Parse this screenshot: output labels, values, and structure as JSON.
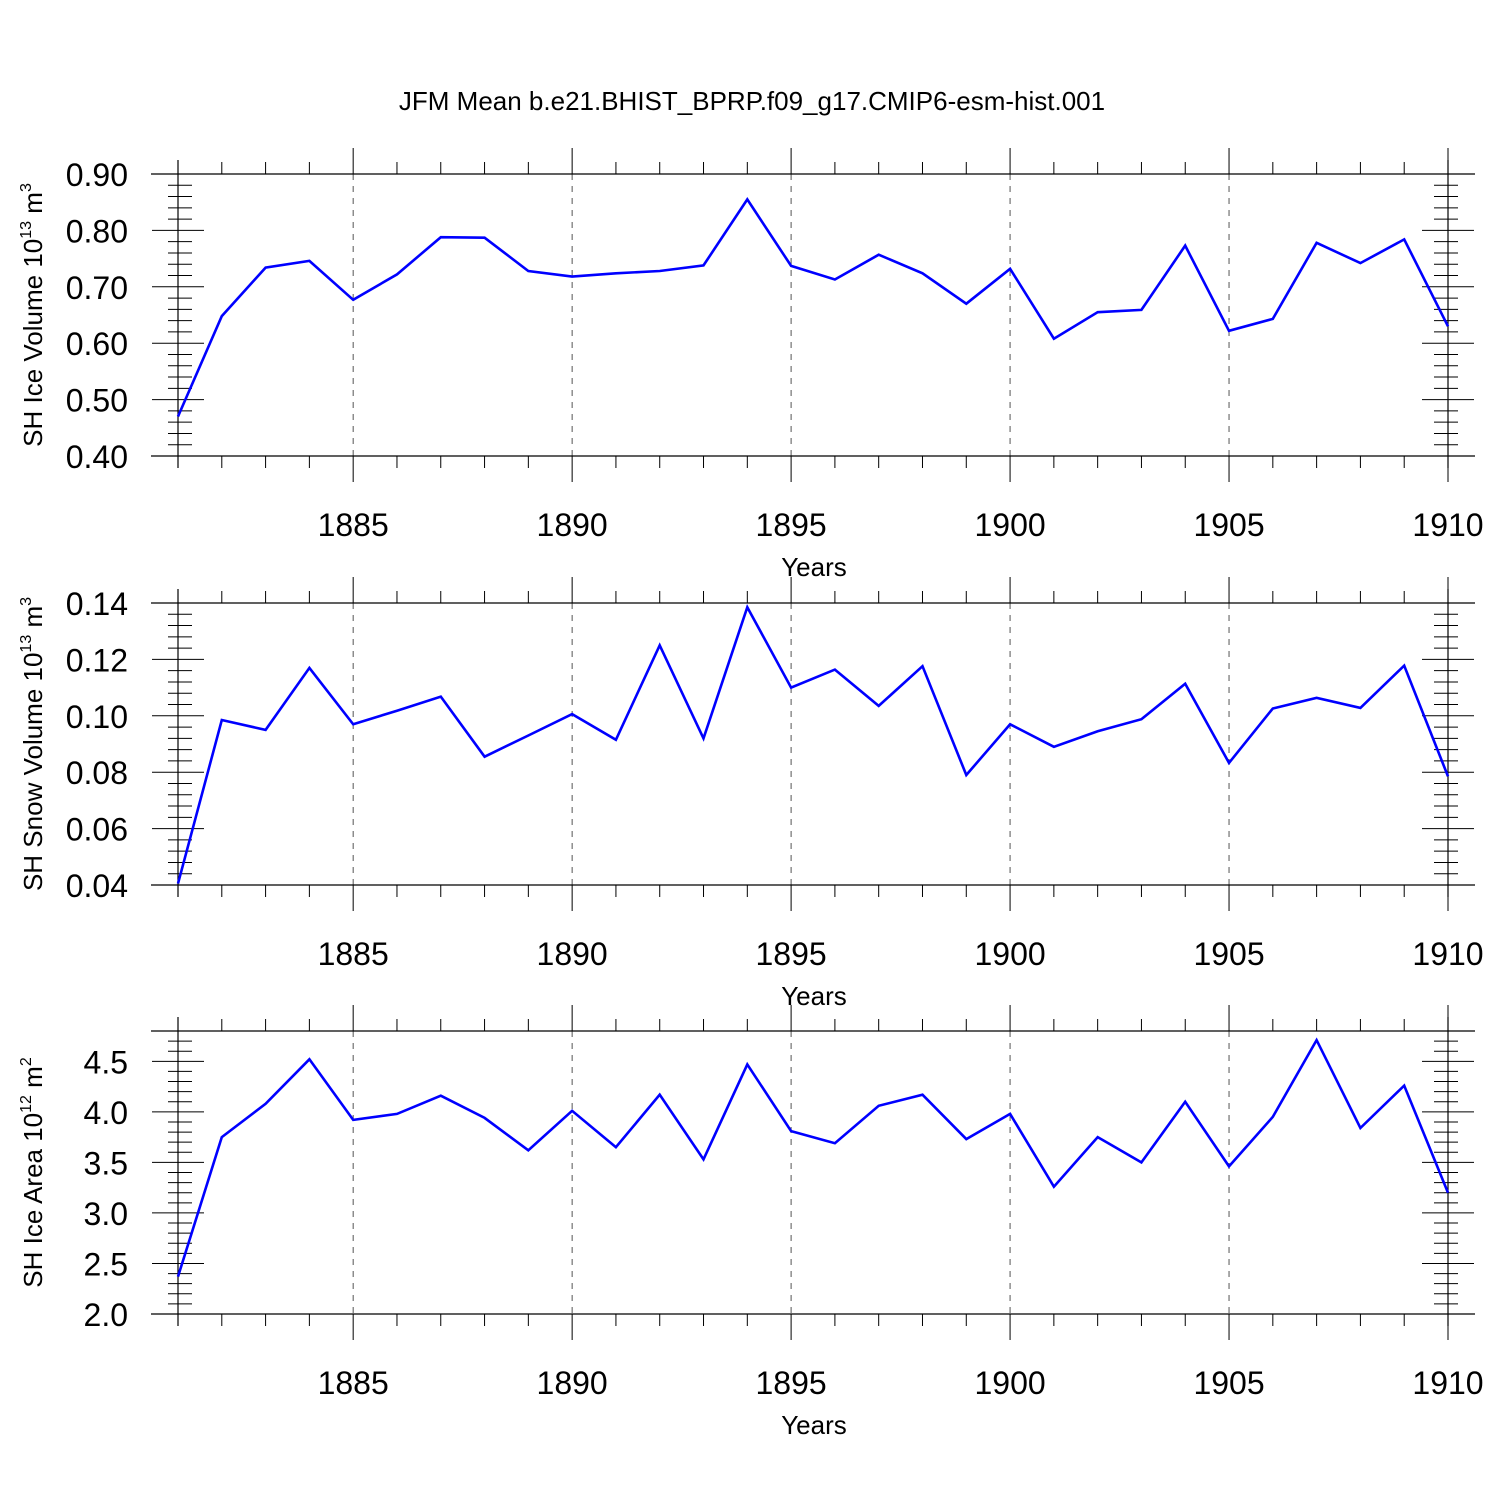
{
  "title": "JFM Mean b.e21.BHIST_BPRP.f09_g17.CMIP6-esm-hist.001",
  "colors": {
    "line": "#0000ff",
    "axis": "#000000",
    "grid": "#555555"
  },
  "chart_data": [
    {
      "type": "line",
      "xlabel": "Years",
      "ylabel": {
        "base": "SH Ice Volume 10",
        "exp": "13",
        "unit": " m",
        "unit_exp": "3"
      },
      "xlim": [
        1881,
        1910
      ],
      "ylim": [
        0.4,
        0.9
      ],
      "x_ticks": [
        1885,
        1890,
        1895,
        1900,
        1905,
        1910
      ],
      "x_tick_labels": [
        "1885",
        "1890",
        "1895",
        "1900",
        "1905",
        "1910"
      ],
      "y_ticks": [
        0.4,
        0.5,
        0.6,
        0.7,
        0.8,
        0.9
      ],
      "y_tick_labels": [
        "0.40",
        "0.50",
        "0.60",
        "0.70",
        "0.80",
        "0.90"
      ],
      "y_minor_step": 0.02,
      "grid": "vertical-dashed-at-major-x",
      "series": [
        {
          "name": "SH Ice Volume",
          "x": [
            1881,
            1882,
            1883,
            1884,
            1885,
            1886,
            1887,
            1888,
            1889,
            1890,
            1891,
            1892,
            1893,
            1894,
            1895,
            1896,
            1897,
            1898,
            1899,
            1900,
            1901,
            1902,
            1903,
            1904,
            1905,
            1906,
            1907,
            1908,
            1909,
            1910
          ],
          "values": [
            0.47,
            0.648,
            0.734,
            0.746,
            0.677,
            0.722,
            0.788,
            0.787,
            0.728,
            0.718,
            0.724,
            0.728,
            0.738,
            0.855,
            0.737,
            0.713,
            0.757,
            0.724,
            0.67,
            0.732,
            0.608,
            0.655,
            0.659,
            0.773,
            0.622,
            0.643,
            0.778,
            0.742,
            0.784,
            0.63
          ]
        }
      ]
    },
    {
      "type": "line",
      "xlabel": "Years",
      "ylabel": {
        "base": "SH Snow Volume 10",
        "exp": "13",
        "unit": " m",
        "unit_exp": "3"
      },
      "xlim": [
        1881,
        1910
      ],
      "ylim": [
        0.04,
        0.14
      ],
      "x_ticks": [
        1885,
        1890,
        1895,
        1900,
        1905,
        1910
      ],
      "x_tick_labels": [
        "1885",
        "1890",
        "1895",
        "1900",
        "1905",
        "1910"
      ],
      "y_ticks": [
        0.04,
        0.06,
        0.08,
        0.1,
        0.12,
        0.14
      ],
      "y_tick_labels": [
        "0.04",
        "0.06",
        "0.08",
        "0.10",
        "0.12",
        "0.14"
      ],
      "y_minor_step": 0.004,
      "grid": "vertical-dashed-at-major-x",
      "series": [
        {
          "name": "SH Snow Volume",
          "x": [
            1881,
            1882,
            1883,
            1884,
            1885,
            1886,
            1887,
            1888,
            1889,
            1890,
            1891,
            1892,
            1893,
            1894,
            1895,
            1896,
            1897,
            1898,
            1899,
            1900,
            1901,
            1902,
            1903,
            1904,
            1905,
            1906,
            1907,
            1908,
            1909,
            1910
          ],
          "values": [
            0.0405,
            0.0985,
            0.095,
            0.117,
            0.097,
            0.1018,
            0.1068,
            0.0855,
            0.093,
            0.1006,
            0.0915,
            0.125,
            0.092,
            0.1385,
            0.11,
            0.1164,
            0.1035,
            0.1176,
            0.079,
            0.097,
            0.089,
            0.0945,
            0.0988,
            0.1114,
            0.0833,
            0.1026,
            0.1064,
            0.1028,
            0.1178,
            0.0785
          ]
        }
      ]
    },
    {
      "type": "line",
      "xlabel": "Years",
      "ylabel": {
        "base": "SH Ice Area 10",
        "exp": "12",
        "unit": " m",
        "unit_exp": "2"
      },
      "xlim": [
        1881,
        1910
      ],
      "ylim": [
        2.0,
        4.8
      ],
      "x_ticks": [
        1885,
        1890,
        1895,
        1900,
        1905,
        1910
      ],
      "x_tick_labels": [
        "1885",
        "1890",
        "1895",
        "1900",
        "1905",
        "1910"
      ],
      "y_ticks": [
        2.0,
        2.5,
        3.0,
        3.5,
        4.0,
        4.5
      ],
      "y_tick_labels": [
        "2.0",
        "2.5",
        "3.0",
        "3.5",
        "4.0",
        "4.5"
      ],
      "y_minor_step": 0.1,
      "grid": "vertical-dashed-at-major-x",
      "series": [
        {
          "name": "SH Ice Area",
          "x": [
            1881,
            1882,
            1883,
            1884,
            1885,
            1886,
            1887,
            1888,
            1889,
            1890,
            1891,
            1892,
            1893,
            1894,
            1895,
            1896,
            1897,
            1898,
            1899,
            1900,
            1901,
            1902,
            1903,
            1904,
            1905,
            1906,
            1907,
            1908,
            1909,
            1910
          ],
          "values": [
            2.37,
            3.75,
            4.08,
            4.52,
            3.92,
            3.98,
            4.16,
            3.94,
            3.62,
            4.01,
            3.65,
            4.17,
            3.53,
            4.47,
            3.81,
            3.69,
            4.06,
            4.17,
            3.73,
            3.98,
            3.26,
            3.75,
            3.5,
            4.1,
            3.46,
            3.95,
            4.71,
            3.84,
            4.26,
            3.2
          ]
        }
      ]
    }
  ]
}
